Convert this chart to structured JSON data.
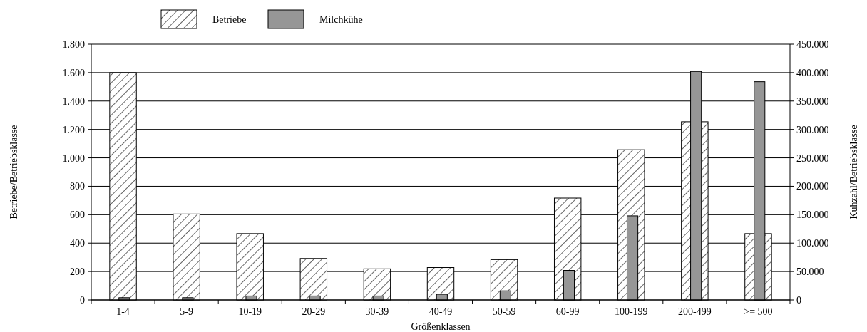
{
  "chart_data": {
    "type": "bar",
    "xlabel": "Größenklassen",
    "ylabel": "Betriebe/Betriebsklasse",
    "y2label": "Kuhzahl/Betriebsklasse",
    "categories": [
      "1-4",
      "5-9",
      "10-19",
      "20-29",
      "30-39",
      "40-49",
      "50-59",
      "60-99",
      "100-199",
      "200-499",
      ">= 500"
    ],
    "series": [
      {
        "name": "Betriebe",
        "color": "#000000",
        "values": [
          1600,
          605,
          467,
          292,
          219,
          228,
          284,
          717,
          1057,
          1254,
          467
        ]
      },
      {
        "name": "Milchkühe",
        "color": "#969696",
        "axis": "y2",
        "values": [
          4000,
          4000,
          7000,
          7000,
          7000,
          10000,
          16000,
          52000,
          148000,
          402000,
          384000
        ]
      }
    ],
    "ylim": [
      0,
      1800
    ],
    "yticks": [
      0,
      200,
      400,
      600,
      800,
      {
        "value": 1000,
        "label": "1.000"
      },
      {
        "value": 1200,
        "label": "1.200"
      },
      {
        "value": 1400,
        "label": "1.400"
      },
      {
        "value": 1600,
        "label": "1.600"
      },
      {
        "value": 1800,
        "label": "1.800"
      }
    ],
    "y2lim": [
      0,
      450000
    ],
    "y2ticks": [
      0,
      {
        "value": 50000,
        "label": "50.000"
      },
      {
        "value": 100000,
        "label": "100.000"
      },
      {
        "value": 150000,
        "label": "150.000"
      },
      {
        "value": 200000,
        "label": "200.000"
      },
      {
        "value": 250000,
        "label": "250.000"
      },
      {
        "value": 300000,
        "label": "300.000"
      },
      {
        "value": 350000,
        "label": "350.000"
      },
      {
        "value": 400000,
        "label": "400.000"
      },
      {
        "value": 450000,
        "label": "450.000"
      }
    ],
    "grid": "y",
    "legend": "top left"
  }
}
